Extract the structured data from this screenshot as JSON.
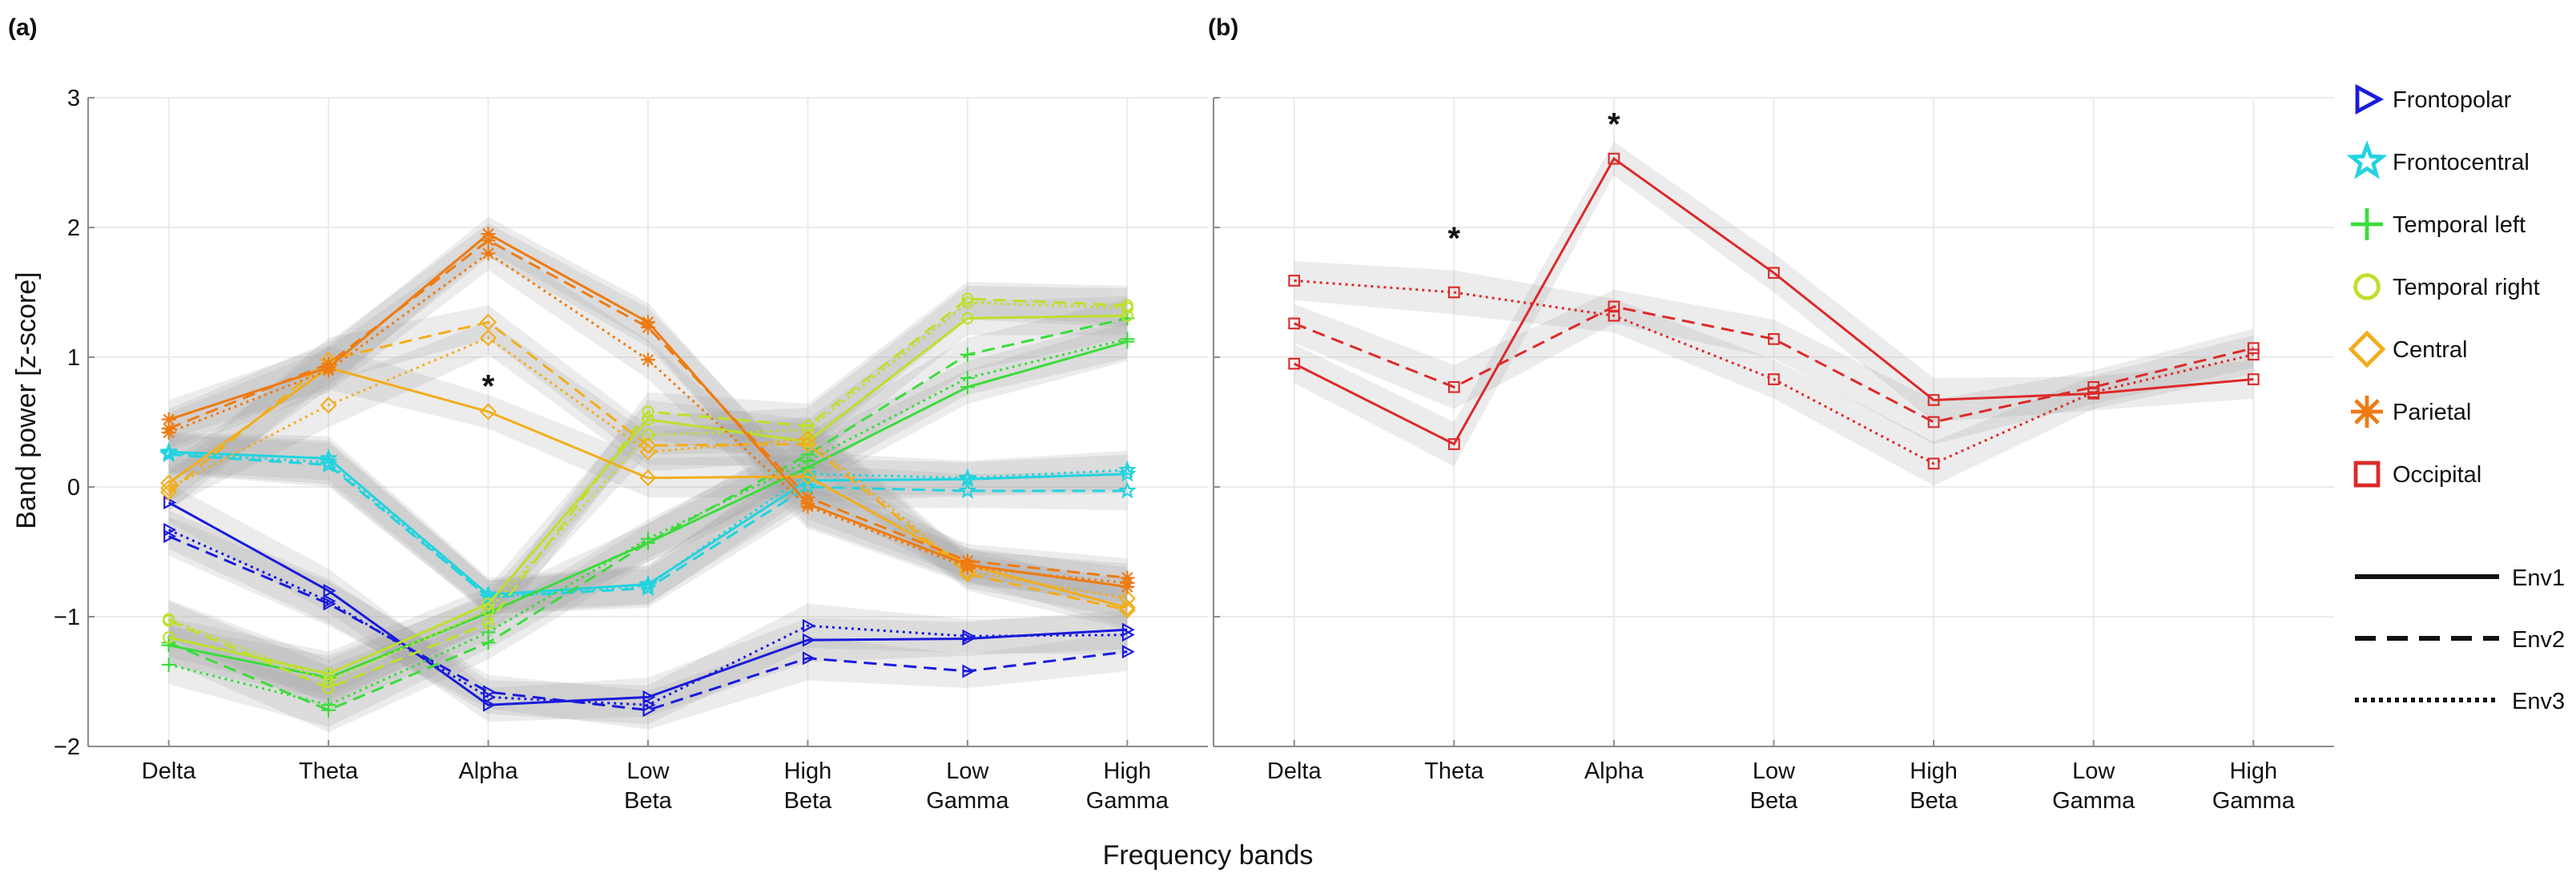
{
  "chart_data": {
    "type": "line",
    "xlabel": "Frequency bands",
    "ylabel": "Band power [z-score]",
    "ylim": [
      -2,
      3
    ],
    "yticks": [
      3,
      2,
      1,
      0,
      -1,
      -2
    ],
    "ytick_labels": [
      "3",
      "2",
      "1",
      "0",
      "−1",
      "−2"
    ],
    "grid": true,
    "categories": [
      [
        "Delta"
      ],
      [
        "Theta"
      ],
      [
        "Alpha"
      ],
      [
        "Low",
        "Beta"
      ],
      [
        "High",
        "Beta"
      ],
      [
        "Low",
        "Gamma"
      ],
      [
        "High",
        "Gamma"
      ]
    ],
    "regions": [
      {
        "name": "Frontopolar",
        "color": "#1a1adb",
        "marker": "triangle-right"
      },
      {
        "name": "Frontocentral",
        "color": "#22d3df",
        "marker": "star"
      },
      {
        "name": "Temporal left",
        "color": "#3bdc3b",
        "marker": "plus"
      },
      {
        "name": "Temporal right",
        "color": "#bde02a",
        "marker": "circle"
      },
      {
        "name": "Central",
        "color": "#f2ad1c",
        "marker": "diamond"
      },
      {
        "name": "Parietal",
        "color": "#ee7b12",
        "marker": "asterisk"
      },
      {
        "name": "Occipital",
        "color": "#dd2a2a",
        "marker": "square"
      }
    ],
    "environments": [
      {
        "name": "Env1",
        "dash": "solid"
      },
      {
        "name": "Env2",
        "dash": "dashed"
      },
      {
        "name": "Env3",
        "dash": "dotted"
      }
    ],
    "panels": [
      {
        "label": "(a)",
        "annotations": [
          {
            "text": "*",
            "category_index": 2,
            "y": 0.78
          }
        ],
        "series": [
          {
            "region": "Frontopolar",
            "env": "Env1",
            "values": [
              -0.12,
              -0.8,
              -1.68,
              -1.62,
              -1.18,
              -1.17,
              -1.1
            ]
          },
          {
            "region": "Frontopolar",
            "env": "Env2",
            "values": [
              -0.38,
              -0.9,
              -1.58,
              -1.72,
              -1.32,
              -1.42,
              -1.27
            ]
          },
          {
            "region": "Frontopolar",
            "env": "Env3",
            "values": [
              -0.33,
              -0.88,
              -1.62,
              -1.68,
              -1.07,
              -1.15,
              -1.14
            ]
          },
          {
            "region": "Frontocentral",
            "env": "Env1",
            "values": [
              0.27,
              0.22,
              -0.83,
              -0.75,
              0.05,
              0.06,
              0.1
            ]
          },
          {
            "region": "Frontocentral",
            "env": "Env2",
            "values": [
              0.25,
              0.17,
              -0.85,
              -0.78,
              0.0,
              -0.03,
              -0.03
            ]
          },
          {
            "region": "Frontocentral",
            "env": "Env3",
            "values": [
              0.26,
              0.19,
              -0.85,
              -0.76,
              0.1,
              0.07,
              0.13
            ]
          },
          {
            "region": "Temporal left",
            "env": "Env1",
            "values": [
              -1.22,
              -1.47,
              -0.97,
              -0.43,
              0.15,
              0.77,
              1.12
            ]
          },
          {
            "region": "Temporal left",
            "env": "Env2",
            "values": [
              -1.2,
              -1.72,
              -1.2,
              -0.43,
              0.25,
              1.02,
              1.3
            ]
          },
          {
            "region": "Temporal left",
            "env": "Env3",
            "values": [
              -1.37,
              -1.68,
              -1.12,
              -0.4,
              0.2,
              0.84,
              1.14
            ]
          },
          {
            "region": "Temporal right",
            "env": "Env1",
            "values": [
              -1.16,
              -1.44,
              -0.9,
              0.52,
              0.35,
              1.3,
              1.32
            ]
          },
          {
            "region": "Temporal right",
            "env": "Env2",
            "values": [
              -1.03,
              -1.55,
              -1.05,
              0.58,
              0.47,
              1.45,
              1.4
            ]
          },
          {
            "region": "Temporal right",
            "env": "Env3",
            "values": [
              -1.02,
              -1.5,
              -0.95,
              0.4,
              0.44,
              1.42,
              1.38
            ]
          },
          {
            "region": "Central",
            "env": "Env1",
            "values": [
              0.03,
              0.92,
              0.58,
              0.07,
              0.08,
              -0.6,
              -0.93
            ]
          },
          {
            "region": "Central",
            "env": "Env2",
            "values": [
              -0.04,
              0.98,
              1.27,
              0.32,
              0.33,
              -0.67,
              -0.95
            ]
          },
          {
            "region": "Central",
            "env": "Env3",
            "values": [
              -0.01,
              0.63,
              1.15,
              0.27,
              0.37,
              -0.65,
              -0.86
            ]
          },
          {
            "region": "Parietal",
            "env": "Env1",
            "values": [
              0.52,
              0.92,
              1.95,
              1.27,
              -0.13,
              -0.6,
              -0.77
            ]
          },
          {
            "region": "Parietal",
            "env": "Env2",
            "values": [
              0.45,
              0.95,
              1.9,
              1.23,
              -0.08,
              -0.57,
              -0.7
            ]
          },
          {
            "region": "Parietal",
            "env": "Env3",
            "values": [
              0.42,
              0.9,
              1.8,
              0.98,
              -0.15,
              -0.62,
              -0.74
            ]
          }
        ]
      },
      {
        "label": "(b)",
        "annotations": [
          {
            "text": "*",
            "category_index": 1,
            "y": 1.92
          },
          {
            "text": "*",
            "category_index": 2,
            "y": 2.8
          }
        ],
        "series": [
          {
            "region": "Occipital",
            "env": "Env1",
            "values": [
              0.95,
              0.33,
              2.53,
              1.65,
              0.67,
              0.72,
              0.83
            ]
          },
          {
            "region": "Occipital",
            "env": "Env2",
            "values": [
              1.26,
              0.77,
              1.39,
              1.14,
              0.5,
              0.77,
              1.07
            ]
          },
          {
            "region": "Occipital",
            "env": "Env3",
            "values": [
              1.59,
              1.5,
              1.32,
              0.83,
              0.18,
              0.73,
              1.02
            ]
          }
        ]
      }
    ]
  }
}
